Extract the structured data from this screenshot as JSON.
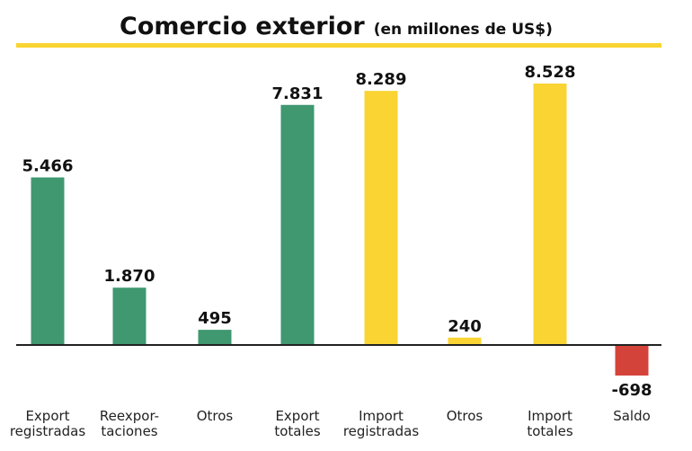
{
  "chart_data": {
    "type": "bar",
    "title": "Comercio exterior",
    "subtitle": "(en millones de US$)",
    "categories": [
      [
        "Export",
        "registradas"
      ],
      [
        "Reexpor-",
        "taciones"
      ],
      [
        "Otros"
      ],
      [
        "Export",
        "totales"
      ],
      [
        "Import",
        "registradas"
      ],
      [
        "Otros"
      ],
      [
        "Import",
        "totales"
      ],
      [
        "Saldo"
      ]
    ],
    "values": [
      5466,
      1870,
      495,
      7831,
      8289,
      240,
      8528,
      -698
    ],
    "value_labels": [
      "5.466",
      "1.870",
      "495",
      "7.831",
      "8.289",
      "240",
      "8.528",
      "-698"
    ],
    "colors": [
      "#3f9870",
      "#3f9870",
      "#3f9870",
      "#3f9870",
      "#f9d432",
      "#f9d432",
      "#f9d432",
      "#d4433a"
    ],
    "accent_color": "#f9d432",
    "xlabel": "",
    "ylabel": "",
    "ylim": [
      -1000,
      9000
    ],
    "grid": false
  }
}
